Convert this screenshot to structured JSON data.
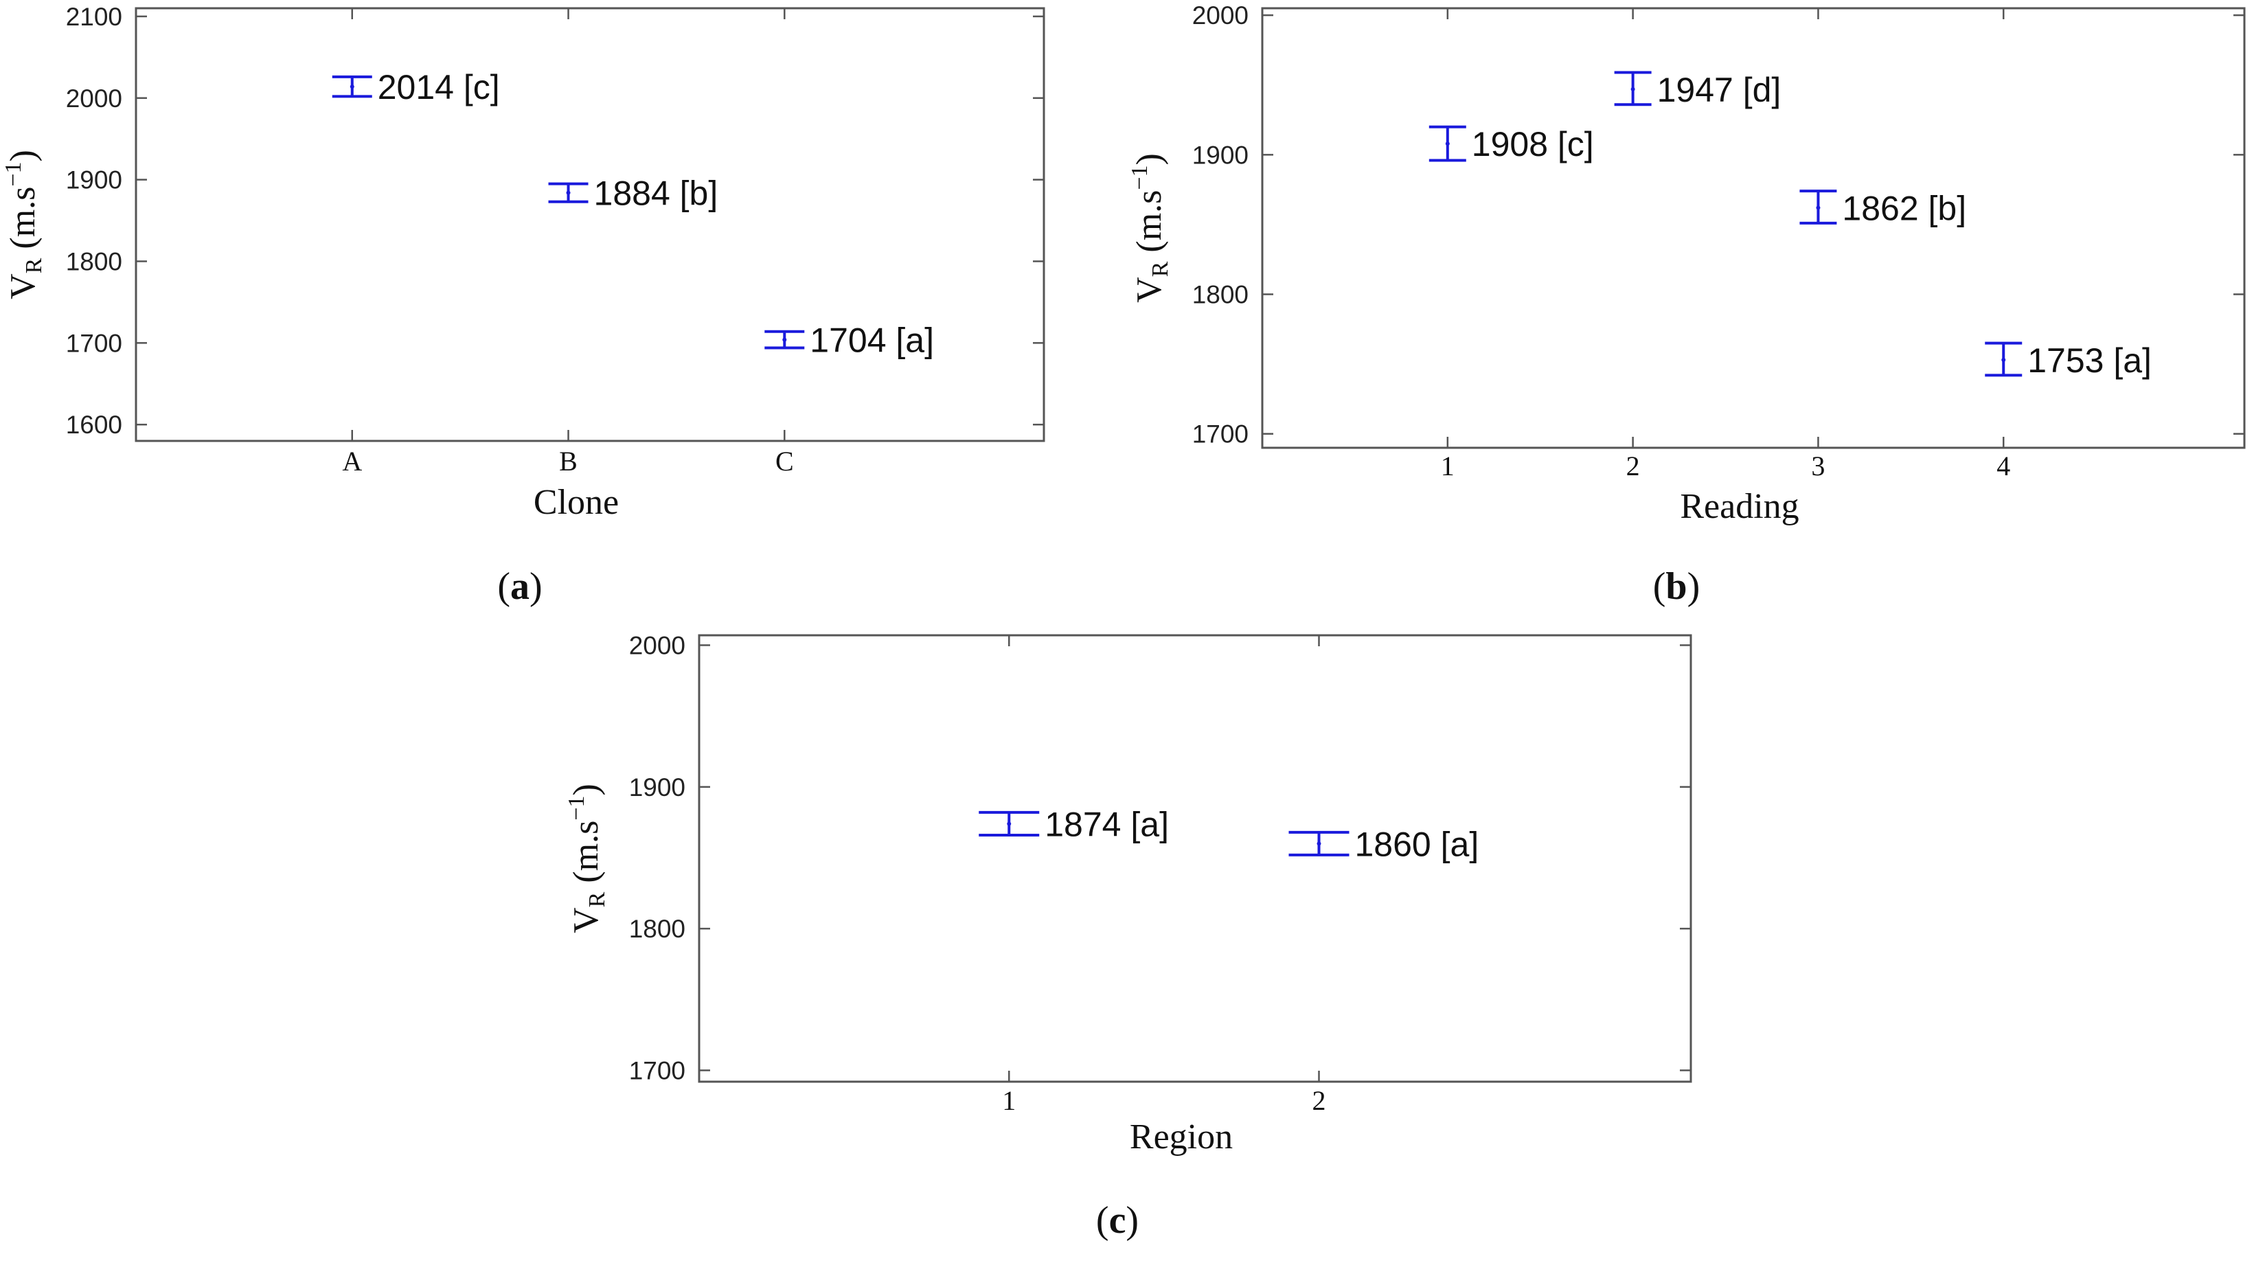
{
  "colors": {
    "errorbar": "#1a1adc",
    "frame": "#555555"
  },
  "chart_data": [
    {
      "id": "a",
      "type": "errorbar",
      "panel_label": "a",
      "xlabel": "Clone",
      "ylabel": {
        "main": "V",
        "sub": "R",
        "unit_pre": " (m.s",
        "unit_sup": "−1",
        "unit_post": ")"
      },
      "ylim": [
        1580,
        2110
      ],
      "yticks": [
        1600,
        1700,
        1800,
        1900,
        2000,
        2100
      ],
      "ytick_labels": [
        "1600",
        "1700",
        "1800",
        "1900",
        "2000",
        "2100"
      ],
      "xlim": [
        0,
        4.2
      ],
      "categories": [
        "A",
        "B",
        "C"
      ],
      "points": [
        {
          "x": 1,
          "mean": 2014,
          "low": 2002,
          "high": 2026,
          "label": "2014 [c]"
        },
        {
          "x": 2,
          "mean": 1884,
          "low": 1873,
          "high": 1895,
          "label": "1884 [b]"
        },
        {
          "x": 3,
          "mean": 1704,
          "low": 1694,
          "high": 1714,
          "label": "1704 [a]"
        }
      ]
    },
    {
      "id": "b",
      "type": "errorbar",
      "panel_label": "b",
      "xlabel": "Reading",
      "ylabel": {
        "main": "V",
        "sub": "R",
        "unit_pre": " (m.s",
        "unit_sup": "−1",
        "unit_post": ")"
      },
      "ylim": [
        1690,
        2005
      ],
      "yticks": [
        1700,
        1800,
        1900,
        2000
      ],
      "ytick_labels": [
        "1700",
        "1800",
        "1900",
        "2000"
      ],
      "xlim": [
        0,
        5.3
      ],
      "categories": [
        "1",
        "2",
        "3",
        "4"
      ],
      "points": [
        {
          "x": 1,
          "mean": 1908,
          "low": 1896,
          "high": 1920,
          "label": "1908 [c]"
        },
        {
          "x": 2,
          "mean": 1947,
          "low": 1936,
          "high": 1959,
          "label": "1947 [d]"
        },
        {
          "x": 3,
          "mean": 1862,
          "low": 1851,
          "high": 1874,
          "label": "1862 [b]"
        },
        {
          "x": 4,
          "mean": 1753,
          "low": 1742,
          "high": 1765,
          "label": "1753 [a]"
        }
      ]
    },
    {
      "id": "c",
      "type": "errorbar",
      "panel_label": "c",
      "xlabel": "Region",
      "ylabel": {
        "main": "V",
        "sub": "R",
        "unit_pre": " (m.s",
        "unit_sup": "−1",
        "unit_post": ")"
      },
      "ylim": [
        1692,
        2007
      ],
      "yticks": [
        1700,
        1800,
        1900,
        2000
      ],
      "ytick_labels": [
        "1700",
        "1800",
        "1900",
        "2000"
      ],
      "xlim": [
        0,
        3.2
      ],
      "categories": [
        "1",
        "2"
      ],
      "points": [
        {
          "x": 1,
          "mean": 1874,
          "low": 1866,
          "high": 1882,
          "label": "1874 [a]"
        },
        {
          "x": 2,
          "mean": 1860,
          "low": 1852,
          "high": 1868,
          "label": "1860 [a]"
        }
      ]
    }
  ]
}
